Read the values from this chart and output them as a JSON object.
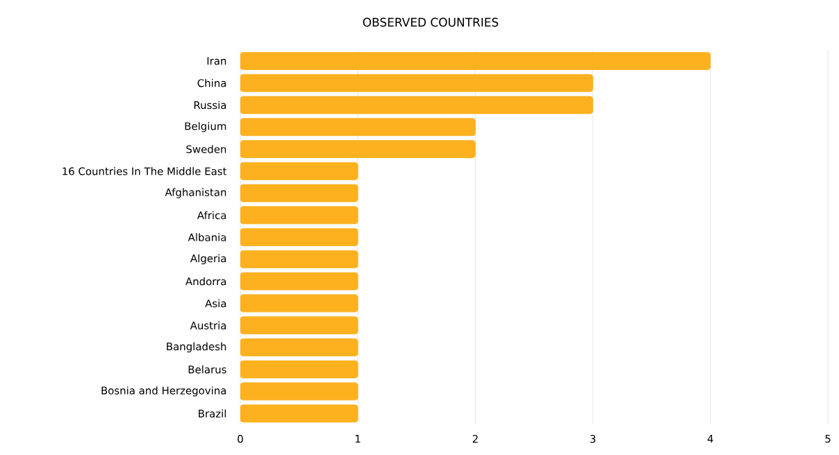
{
  "chart_data": {
    "type": "bar",
    "orientation": "horizontal",
    "title": "OBSERVED COUNTRIES",
    "categories": [
      "Iran",
      "China",
      "Russia",
      "Belgium",
      "Sweden",
      "16 Countries In The Middle East",
      "Afghanistan",
      "Africa",
      "Albania",
      "Algeria",
      "Andorra",
      "Asia",
      "Austria",
      "Bangladesh",
      "Belarus",
      "Bosnia and Herzegovina",
      "Brazil"
    ],
    "values": [
      4,
      3,
      3,
      2,
      2,
      1,
      1,
      1,
      1,
      1,
      1,
      1,
      1,
      1,
      1,
      1,
      1
    ],
    "color": "#fdb11f",
    "xlim": [
      0,
      5
    ],
    "xticks": [
      0,
      1,
      2,
      3,
      4,
      5
    ],
    "grid": "x"
  }
}
